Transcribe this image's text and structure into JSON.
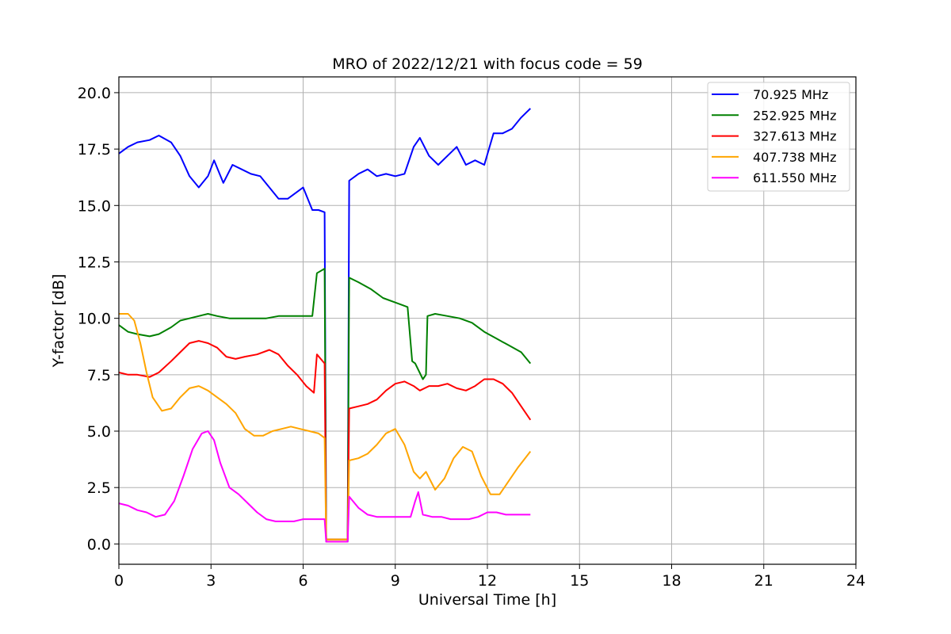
{
  "chart_data": {
    "type": "line",
    "title": "MRO of 2022/12/21 with focus code = 59",
    "xlabel": "Universal Time [h]",
    "ylabel": "Y-factor [dB]",
    "xlim": [
      0,
      24
    ],
    "ylim": [
      -0.9,
      20.7
    ],
    "xticks": [
      0,
      3,
      6,
      9,
      12,
      15,
      18,
      21,
      24
    ],
    "yticks": [
      0.0,
      2.5,
      5.0,
      7.5,
      10.0,
      12.5,
      15.0,
      17.5,
      20.0
    ],
    "xtick_labels": [
      "0",
      "3",
      "6",
      "9",
      "12",
      "15",
      "18",
      "21",
      "24"
    ],
    "ytick_labels": [
      "0.0",
      "2.5",
      "5.0",
      "7.5",
      "10.0",
      "12.5",
      "15.0",
      "17.5",
      "20.0"
    ],
    "grid": true,
    "legend_position": "top-right",
    "series": [
      {
        "name": "  70.925 MHz",
        "color": "#0000ff",
        "x": [
          0,
          0.3,
          0.6,
          1.0,
          1.3,
          1.7,
          2.0,
          2.3,
          2.6,
          2.9,
          3.1,
          3.4,
          3.7,
          4.0,
          4.3,
          4.6,
          4.9,
          5.2,
          5.5,
          5.8,
          6.0,
          6.3,
          6.5,
          6.7,
          6.75,
          7.45,
          7.5,
          7.8,
          8.1,
          8.4,
          8.7,
          9.0,
          9.3,
          9.6,
          9.8,
          10.1,
          10.4,
          10.7,
          11.0,
          11.3,
          11.6,
          11.9,
          12.2,
          12.5,
          12.8,
          13.1,
          13.4
        ],
        "values": [
          17.3,
          17.6,
          17.8,
          17.9,
          18.1,
          17.8,
          17.2,
          16.3,
          15.8,
          16.3,
          17.0,
          16.0,
          16.8,
          16.6,
          16.4,
          16.3,
          15.8,
          15.3,
          15.3,
          15.6,
          15.8,
          14.8,
          14.8,
          14.7,
          0.1,
          0.1,
          16.1,
          16.4,
          16.6,
          16.3,
          16.4,
          16.3,
          16.4,
          17.6,
          18.0,
          17.2,
          16.8,
          17.2,
          17.6,
          16.8,
          17.0,
          16.8,
          18.2,
          18.2,
          18.4,
          18.9,
          19.3
        ]
      },
      {
        "name": "252.925 MHz",
        "color": "#008000",
        "x": [
          0,
          0.3,
          0.6,
          1.0,
          1.3,
          1.7,
          2.0,
          2.3,
          2.6,
          2.9,
          3.2,
          3.6,
          4.0,
          4.4,
          4.8,
          5.2,
          5.6,
          6.0,
          6.3,
          6.45,
          6.7,
          6.75,
          7.45,
          7.5,
          7.8,
          8.2,
          8.6,
          9.0,
          9.4,
          9.55,
          9.65,
          9.9,
          10.0,
          10.05,
          10.3,
          10.7,
          11.1,
          11.5,
          11.9,
          12.3,
          12.7,
          13.1,
          13.4
        ],
        "values": [
          9.7,
          9.4,
          9.3,
          9.2,
          9.3,
          9.6,
          9.9,
          10.0,
          10.1,
          10.2,
          10.1,
          10.0,
          10.0,
          10.0,
          10.0,
          10.1,
          10.1,
          10.1,
          10.1,
          12.0,
          12.2,
          0.2,
          0.2,
          11.8,
          11.6,
          11.3,
          10.9,
          10.7,
          10.5,
          8.1,
          8.0,
          7.3,
          7.5,
          10.1,
          10.2,
          10.1,
          10.0,
          9.8,
          9.4,
          9.1,
          8.8,
          8.5,
          8.0
        ]
      },
      {
        "name": "327.613 MHz",
        "color": "#ff0000",
        "x": [
          0,
          0.3,
          0.6,
          1.0,
          1.3,
          1.7,
          2.0,
          2.3,
          2.6,
          2.9,
          3.2,
          3.5,
          3.8,
          4.1,
          4.5,
          4.9,
          5.2,
          5.5,
          5.8,
          6.1,
          6.35,
          6.45,
          6.7,
          6.75,
          7.45,
          7.5,
          7.8,
          8.1,
          8.4,
          8.7,
          9.0,
          9.3,
          9.6,
          9.8,
          10.1,
          10.4,
          10.7,
          11.0,
          11.3,
          11.6,
          11.9,
          12.2,
          12.5,
          12.8,
          13.1,
          13.4
        ],
        "values": [
          7.6,
          7.5,
          7.5,
          7.4,
          7.6,
          8.1,
          8.5,
          8.9,
          9.0,
          8.9,
          8.7,
          8.3,
          8.2,
          8.3,
          8.4,
          8.6,
          8.4,
          7.9,
          7.5,
          7.0,
          6.7,
          8.4,
          8.0,
          0.2,
          0.2,
          6.0,
          6.1,
          6.2,
          6.4,
          6.8,
          7.1,
          7.2,
          7.0,
          6.8,
          7.0,
          7.0,
          7.1,
          6.9,
          6.8,
          7.0,
          7.3,
          7.3,
          7.1,
          6.7,
          6.1,
          5.5
        ]
      },
      {
        "name": "407.738 MHz",
        "color": "#ffa500",
        "x": [
          0,
          0.3,
          0.5,
          0.7,
          0.9,
          1.1,
          1.4,
          1.7,
          2.0,
          2.3,
          2.6,
          2.9,
          3.2,
          3.5,
          3.8,
          4.1,
          4.4,
          4.7,
          5.0,
          5.3,
          5.6,
          5.9,
          6.2,
          6.5,
          6.7,
          6.75,
          7.45,
          7.5,
          7.8,
          8.1,
          8.4,
          8.7,
          9.0,
          9.3,
          9.6,
          9.8,
          10.0,
          10.3,
          10.6,
          10.9,
          11.2,
          11.5,
          11.8,
          12.1,
          12.4,
          12.7,
          13.0,
          13.4
        ],
        "values": [
          10.2,
          10.2,
          9.9,
          8.9,
          7.6,
          6.5,
          5.9,
          6.0,
          6.5,
          6.9,
          7.0,
          6.8,
          6.5,
          6.2,
          5.8,
          5.1,
          4.8,
          4.8,
          5.0,
          5.1,
          5.2,
          5.1,
          5.0,
          4.9,
          4.7,
          0.2,
          0.2,
          3.7,
          3.8,
          4.0,
          4.4,
          4.9,
          5.1,
          4.4,
          3.2,
          2.9,
          3.2,
          2.4,
          2.9,
          3.8,
          4.3,
          4.1,
          3.0,
          2.2,
          2.2,
          2.8,
          3.4,
          4.1
        ]
      },
      {
        "name": "611.550 MHz",
        "color": "#ff00ff",
        "x": [
          0,
          0.3,
          0.6,
          0.9,
          1.2,
          1.5,
          1.8,
          2.1,
          2.4,
          2.7,
          2.9,
          3.1,
          3.3,
          3.6,
          3.9,
          4.2,
          4.5,
          4.8,
          5.1,
          5.4,
          5.7,
          6.0,
          6.3,
          6.6,
          6.7,
          6.75,
          7.45,
          7.5,
          7.8,
          8.1,
          8.4,
          8.7,
          9.0,
          9.3,
          9.5,
          9.65,
          9.75,
          9.9,
          10.2,
          10.5,
          10.8,
          11.1,
          11.4,
          11.7,
          12.0,
          12.3,
          12.6,
          12.9,
          13.2,
          13.4
        ],
        "values": [
          1.8,
          1.7,
          1.5,
          1.4,
          1.2,
          1.3,
          1.9,
          3.0,
          4.2,
          4.9,
          5.0,
          4.6,
          3.6,
          2.5,
          2.2,
          1.8,
          1.4,
          1.1,
          1.0,
          1.0,
          1.0,
          1.1,
          1.1,
          1.1,
          1.1,
          0.1,
          0.1,
          2.1,
          1.6,
          1.3,
          1.2,
          1.2,
          1.2,
          1.2,
          1.2,
          1.9,
          2.3,
          1.3,
          1.2,
          1.2,
          1.1,
          1.1,
          1.1,
          1.2,
          1.4,
          1.4,
          1.3,
          1.3,
          1.3,
          1.3
        ]
      }
    ]
  }
}
